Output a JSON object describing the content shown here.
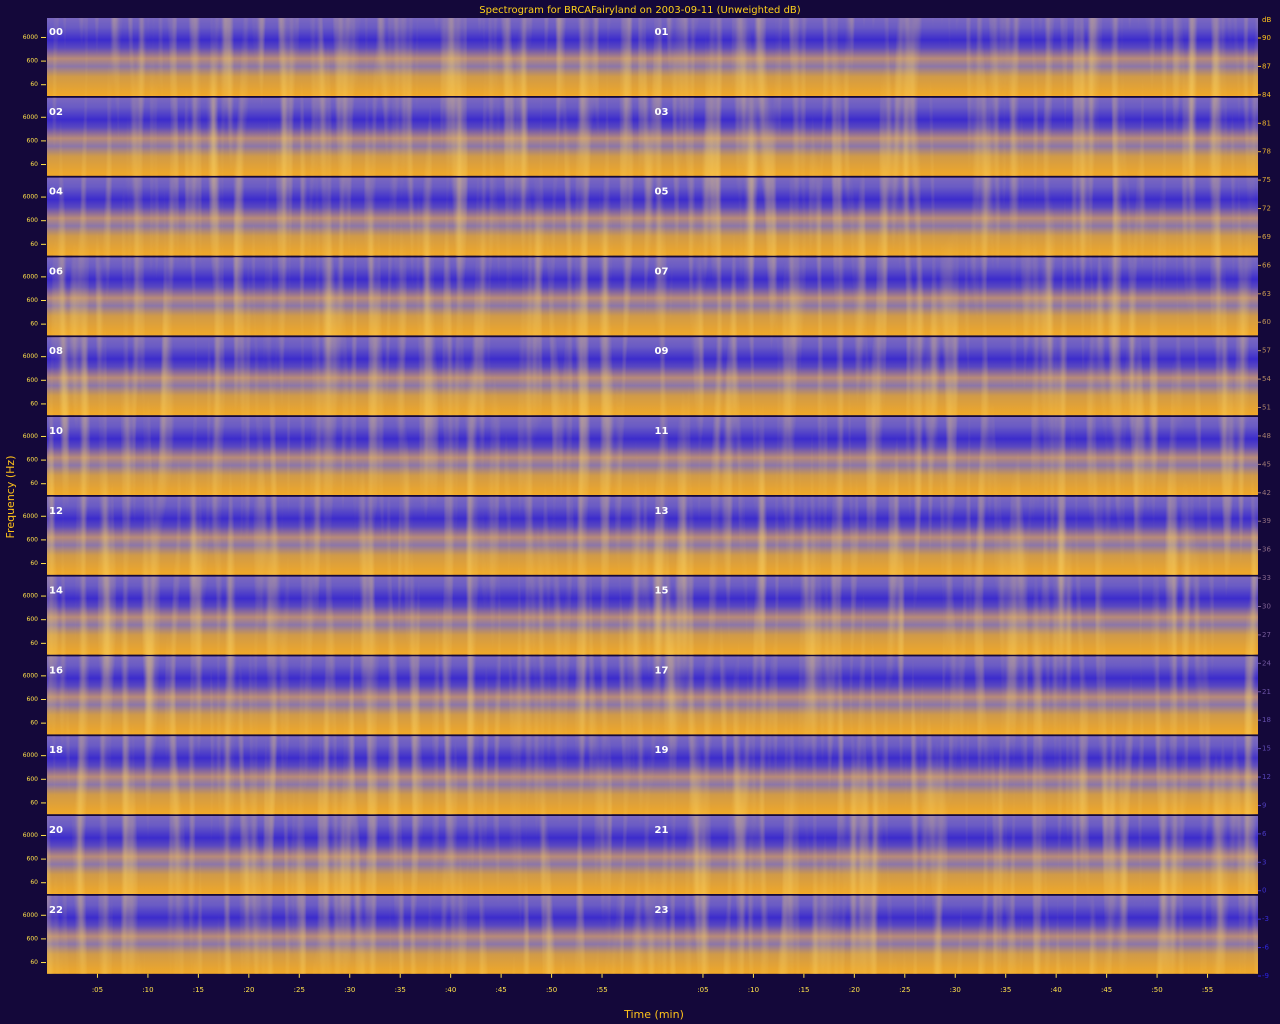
{
  "chart_data": {
    "type": "spectrogram",
    "title": "Spectrogram for BRCAFairyland on 2003-09-11 (Unweighted dB)",
    "xlabel": "Time (min)",
    "ylabel": "Frequency (Hz)",
    "hours": [
      "00",
      "01",
      "02",
      "03",
      "04",
      "05",
      "06",
      "07",
      "08",
      "09",
      "10",
      "11",
      "12",
      "13",
      "14",
      "15",
      "16",
      "17",
      "18",
      "19",
      "20",
      "21",
      "22",
      "23"
    ],
    "xlim": [
      0,
      60
    ],
    "xticks": [
      {
        "value": 5,
        "label": ":05"
      },
      {
        "value": 10,
        "label": ":10"
      },
      {
        "value": 15,
        "label": ":15"
      },
      {
        "value": 20,
        "label": ":20"
      },
      {
        "value": 25,
        "label": ":25"
      },
      {
        "value": 30,
        "label": ":30"
      },
      {
        "value": 35,
        "label": ":35"
      },
      {
        "value": 40,
        "label": ":40"
      },
      {
        "value": 45,
        "label": ":45"
      },
      {
        "value": 50,
        "label": ":50"
      },
      {
        "value": 55,
        "label": ":55"
      }
    ],
    "ylim": [
      20,
      40000
    ],
    "log_y": true,
    "yticks": [
      6000,
      600,
      60
    ],
    "colorbar": {
      "label": "dB",
      "lim": [
        -9,
        90
      ],
      "ticks": [
        90,
        87,
        84,
        81,
        78,
        75,
        72,
        69,
        66,
        63,
        60,
        57,
        54,
        51,
        48,
        45,
        42,
        39,
        36,
        33,
        30,
        27,
        24,
        21,
        18,
        15,
        12,
        9,
        6,
        3,
        0,
        -3,
        -6,
        -9
      ],
      "colors": [
        "#2a22e0",
        "#ffc21a"
      ]
    }
  }
}
